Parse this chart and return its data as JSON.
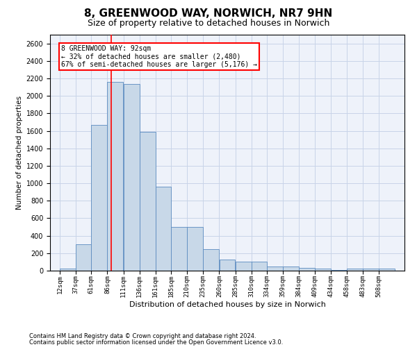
{
  "title1": "8, GREENWOOD WAY, NORWICH, NR7 9HN",
  "title2": "Size of property relative to detached houses in Norwich",
  "xlabel": "Distribution of detached houses by size in Norwich",
  "ylabel": "Number of detached properties",
  "footnote1": "Contains HM Land Registry data © Crown copyright and database right 2024.",
  "footnote2": "Contains public sector information licensed under the Open Government Licence v3.0.",
  "annotation_line1": "8 GREENWOOD WAY: 92sqm",
  "annotation_line2": "← 32% of detached houses are smaller (2,480)",
  "annotation_line3": "67% of semi-detached houses are larger (5,176) →",
  "bar_color": "#c8d8e8",
  "bar_edge_color": "#5a8abf",
  "red_line_x": 92,
  "categories": [
    "12sqm",
    "37sqm",
    "61sqm",
    "86sqm",
    "111sqm",
    "136sqm",
    "161sqm",
    "185sqm",
    "210sqm",
    "235sqm",
    "260sqm",
    "285sqm",
    "310sqm",
    "334sqm",
    "359sqm",
    "384sqm",
    "409sqm",
    "434sqm",
    "458sqm",
    "483sqm",
    "508sqm"
  ],
  "bin_edges": [
    12,
    37,
    61,
    86,
    111,
    136,
    161,
    185,
    210,
    235,
    260,
    285,
    310,
    334,
    359,
    384,
    409,
    434,
    458,
    483,
    508,
    533
  ],
  "values": [
    25,
    300,
    1670,
    2160,
    2140,
    1590,
    960,
    500,
    500,
    245,
    125,
    100,
    100,
    50,
    50,
    30,
    20,
    10,
    20,
    20,
    20
  ],
  "ylim": [
    0,
    2700
  ],
  "yticks": [
    0,
    200,
    400,
    600,
    800,
    1000,
    1200,
    1400,
    1600,
    1800,
    2000,
    2200,
    2400,
    2600
  ],
  "grid_color": "#c8d4e8",
  "background_color": "#eef2fa",
  "title1_fontsize": 11,
  "title2_fontsize": 9
}
